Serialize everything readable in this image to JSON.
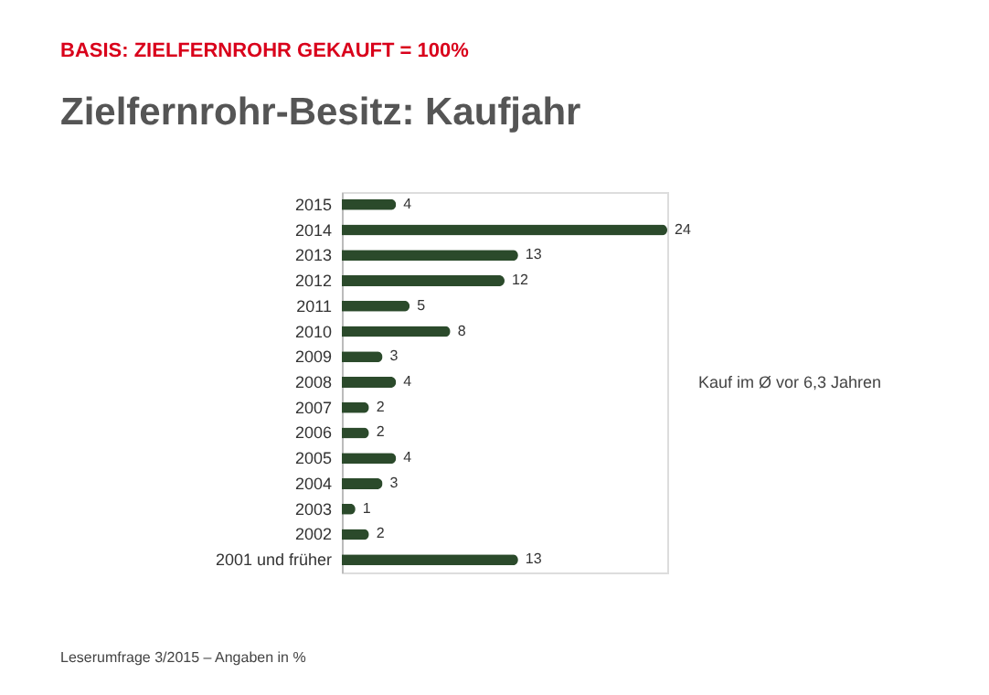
{
  "chart_data": {
    "type": "bar",
    "orientation": "horizontal",
    "subtitle": "BASIS: ZIELFERNROHR GEKAUFT = 100%",
    "title": "Zielfernrohr-Besitz: Kaufjahr",
    "categories": [
      "2015",
      "2014",
      "2013",
      "2012",
      "2011",
      "2010",
      "2009",
      "2008",
      "2007",
      "2006",
      "2005",
      "2004",
      "2003",
      "2002",
      "2001 und früher"
    ],
    "values": [
      4,
      24,
      13,
      12,
      5,
      8,
      3,
      4,
      2,
      2,
      4,
      3,
      1,
      2,
      13
    ],
    "color": "#2b4a2b",
    "data_labels": true,
    "grid": false,
    "annotations": [
      "Kauf im Ø vor 6,3 Jahren",
      "Leserumfrage 3/2015 – Angaben in %"
    ]
  }
}
